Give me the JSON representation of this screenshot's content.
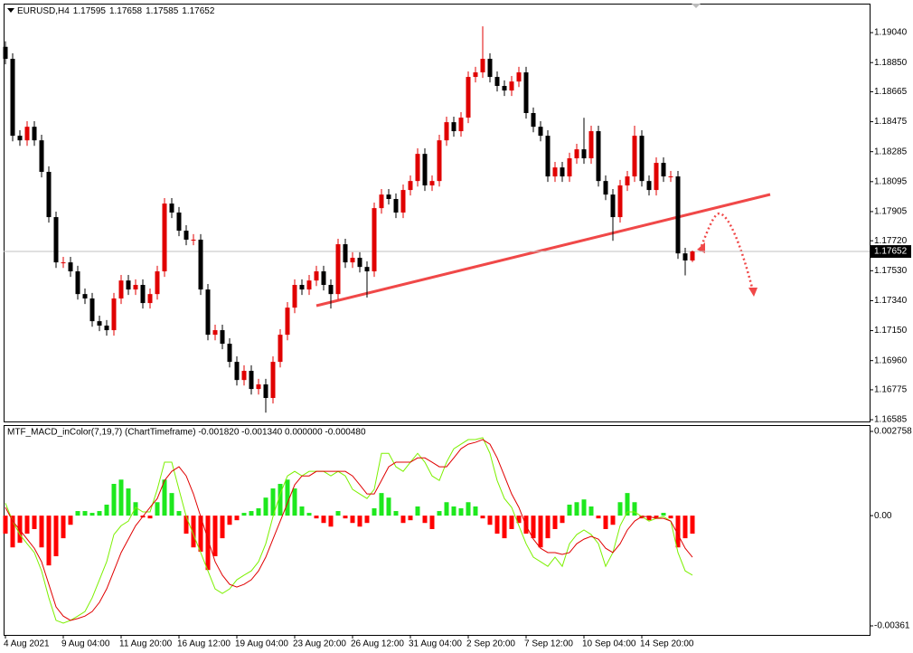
{
  "chart_data": [
    {
      "type": "candlestick",
      "title": "EURUSD,H4",
      "categories": [
        "4 Aug 2021",
        null,
        null,
        null,
        null,
        null,
        null,
        null,
        "9 Aug 04:00",
        null,
        null,
        null,
        null,
        null,
        null,
        null,
        "11 Aug 20:00",
        null,
        null,
        null,
        null,
        null,
        null,
        null,
        "16 Aug 12:00",
        null,
        null,
        null,
        null,
        null,
        null,
        null,
        "19 Aug 04:00",
        null,
        null,
        null,
        null,
        null,
        null,
        null,
        "23 Aug 20:00",
        null,
        null,
        null,
        null,
        null,
        null,
        null,
        "26 Aug 12:00",
        null,
        null,
        null,
        null,
        null,
        null,
        null,
        "31 Aug 04:00",
        null,
        null,
        null,
        null,
        null,
        null,
        null,
        "2 Sep 20:00",
        null,
        null,
        null,
        null,
        null,
        null,
        null,
        "7 Sep 12:00",
        null,
        null,
        null,
        null,
        null,
        null,
        null,
        "10 Sep 04:00",
        null,
        null,
        null,
        null,
        null,
        null,
        null,
        "14 Sep 20:00",
        null,
        null,
        null,
        null,
        null,
        null,
        null
      ],
      "open": [
        1.1895,
        1.18874,
        1.18386,
        1.18357,
        1.18443,
        1.18357,
        1.18157,
        1.1787,
        1.17583,
        1.17583,
        1.17526,
        1.17382,
        1.17354,
        1.1721,
        1.17182,
        1.17153,
        1.17354,
        1.17468,
        1.17411,
        1.1744,
        1.17325,
        1.17382,
        1.17526,
        1.17956,
        1.17899,
        1.17784,
        1.17727,
        1.17727,
        1.17411,
        1.17124,
        1.17153,
        1.17067,
        1.16952,
        1.16837,
        1.16895,
        1.1678,
        1.16809,
        1.16723,
        1.16952,
        1.17124,
        1.17296,
        1.1744,
        1.17411,
        1.17468,
        1.17526,
        1.1744,
        1.17382,
        1.17698,
        1.17583,
        1.17612,
        1.17554,
        1.17526,
        1.17927,
        1.18013,
        1.17985,
        1.17899,
        1.18042,
        1.18099,
        1.18271,
        1.18071,
        1.18099,
        1.18357,
        1.18472,
        1.18415,
        1.18501,
        1.18759,
        1.18788,
        1.18874,
        1.18759,
        1.18702,
        1.18673,
        1.1873,
        1.18788,
        1.1853,
        1.18443,
        1.18386,
        1.18128,
        1.18185,
        1.18128,
        1.18243,
        1.183,
        1.18243,
        1.18415,
        1.18099,
        1.18013,
        1.1787,
        1.18071,
        1.18128,
        1.18386,
        1.18099,
        1.18042,
        1.18214,
        1.18128,
        1.18128,
        1.1764,
        1.17595
      ],
      "high": [
        1.18985,
        1.18909,
        1.18421,
        1.18478,
        1.18478,
        1.18392,
        1.18192,
        1.17905,
        1.17618,
        1.17618,
        1.17561,
        1.17417,
        1.17389,
        1.17245,
        1.17217,
        1.17389,
        1.17503,
        1.17503,
        1.17475,
        1.17475,
        1.17417,
        1.17561,
        1.17991,
        1.17991,
        1.17934,
        1.17819,
        1.17762,
        1.17762,
        1.17446,
        1.17188,
        1.17188,
        1.17102,
        1.16987,
        1.1693,
        1.1693,
        1.16844,
        1.16844,
        1.16987,
        1.17159,
        1.17331,
        1.17475,
        1.17475,
        1.17503,
        1.17561,
        1.17561,
        1.17475,
        1.17733,
        1.17733,
        1.17647,
        1.17647,
        1.17589,
        1.17962,
        1.18048,
        1.18048,
        1.1802,
        1.18077,
        1.18134,
        1.18306,
        1.18306,
        1.18134,
        1.18392,
        1.18507,
        1.18507,
        1.18536,
        1.18794,
        1.18823,
        1.1908,
        1.18909,
        1.18794,
        1.18737,
        1.18765,
        1.18823,
        1.18823,
        1.18565,
        1.18478,
        1.18421,
        1.1822,
        1.1822,
        1.18278,
        1.18335,
        1.185,
        1.1845,
        1.1845,
        1.18134,
        1.18048,
        1.18106,
        1.18163,
        1.1845,
        1.18421,
        1.18134,
        1.18249,
        1.18249,
        1.18163,
        1.18163,
        1.17675,
        1.17658
      ],
      "low": [
        1.18839,
        1.18351,
        1.18322,
        1.18322,
        1.18322,
        1.18122,
        1.17835,
        1.17548,
        1.17548,
        1.17491,
        1.17347,
        1.17319,
        1.17175,
        1.17147,
        1.17118,
        1.17118,
        1.17319,
        1.17376,
        1.17376,
        1.1729,
        1.1729,
        1.17347,
        1.17491,
        1.17864,
        1.17749,
        1.17692,
        1.17692,
        1.17376,
        1.17089,
        1.17089,
        1.17032,
        1.16917,
        1.16802,
        1.16802,
        1.16745,
        1.16745,
        1.1663,
        1.16688,
        1.16917,
        1.17089,
        1.17261,
        1.17376,
        1.17376,
        1.17433,
        1.17405,
        1.1729,
        1.17347,
        1.17548,
        1.17548,
        1.17519,
        1.1736,
        1.17491,
        1.17892,
        1.1795,
        1.17864,
        1.17864,
        1.18007,
        1.18064,
        1.18036,
        1.18036,
        1.18064,
        1.18322,
        1.1838,
        1.1838,
        1.18466,
        1.18724,
        1.18753,
        1.18724,
        1.18667,
        1.18638,
        1.18638,
        1.18695,
        1.18495,
        1.18408,
        1.18351,
        1.18093,
        1.18093,
        1.18093,
        1.18093,
        1.18208,
        1.18208,
        1.18208,
        1.18064,
        1.17978,
        1.1772,
        1.17835,
        1.18036,
        1.18093,
        1.18064,
        1.18007,
        1.18007,
        1.18093,
        1.18093,
        1.17605,
        1.175,
        1.17585
      ],
      "close": [
        1.18874,
        1.18386,
        1.18357,
        1.18443,
        1.18357,
        1.18157,
        1.1787,
        1.17583,
        1.17583,
        1.17526,
        1.17382,
        1.17354,
        1.1721,
        1.17182,
        1.17153,
        1.17354,
        1.17468,
        1.17411,
        1.1744,
        1.17325,
        1.17382,
        1.17526,
        1.17956,
        1.17899,
        1.17784,
        1.17727,
        1.17727,
        1.17411,
        1.17124,
        1.17153,
        1.17067,
        1.16952,
        1.16837,
        1.16895,
        1.1678,
        1.16809,
        1.16723,
        1.16952,
        1.17124,
        1.17296,
        1.1744,
        1.17411,
        1.17468,
        1.17526,
        1.1744,
        1.17382,
        1.17698,
        1.17583,
        1.17612,
        1.17554,
        1.17526,
        1.17927,
        1.18013,
        1.17985,
        1.17899,
        1.18042,
        1.18099,
        1.18271,
        1.18071,
        1.18099,
        1.18357,
        1.18472,
        1.18415,
        1.18501,
        1.18759,
        1.18788,
        1.18874,
        1.18759,
        1.18702,
        1.18673,
        1.1873,
        1.18788,
        1.1853,
        1.18443,
        1.18386,
        1.18128,
        1.18185,
        1.18128,
        1.18243,
        1.183,
        1.18243,
        1.18415,
        1.18099,
        1.18013,
        1.1787,
        1.18071,
        1.18128,
        1.18386,
        1.18099,
        1.18042,
        1.18214,
        1.18128,
        1.18128,
        1.1764,
        1.17595,
        1.17652
      ],
      "up_color": "#e00000",
      "down_color": "#000000",
      "ylim": [
        1.16574,
        1.19224
      ],
      "yticks": [
        {
          "value": 1.1904,
          "label": "1.19040"
        },
        {
          "value": 1.1885,
          "label": "1.18850"
        },
        1.18665,
        1.18475,
        1.18285,
        1.18095,
        1.17905,
        {
          "value": 1.1772,
          "label": "1.17720"
        },
        {
          "value": 1.1753,
          "label": "1.17530"
        },
        {
          "value": 1.1734,
          "label": "1.17340"
        },
        {
          "value": 1.1715,
          "label": "1.17150"
        },
        {
          "value": 1.1696,
          "label": "1.16960"
        },
        1.16775,
        1.16585
      ],
      "grid": false
    },
    {
      "type": "macd",
      "title": "MTF_MACD_inColor(7,19,7) (ChartTimeframe) -0.001820 -0.001340 0.000000 -0.000480",
      "values": [
        -0.00059,
        -0.00104,
        -0.00089,
        -0.00059,
        -0.00044,
        -0.00104,
        -0.00163,
        -0.00133,
        -0.00074,
        -0.0003,
        0.00015,
        0.00015,
        9e-05,
        0.00015,
        0.00036,
        0.00104,
        0.00118,
        0.00089,
        0.00044,
        -6e-05,
        -9e-05,
        0.00044,
        0.00118,
        0.00074,
        0.00015,
        -0.00059,
        -0.00104,
        -0.00118,
        -0.00178,
        -0.00133,
        -0.00074,
        -0.0003,
        -0.00015,
        9e-05,
        0.00015,
        0.00024,
        0.00059,
        0.00089,
        0.00104,
        0.00118,
        0.00089,
        0.0003,
        9e-05,
        -9e-05,
        -0.00024,
        -0.00036,
        0.00015,
        -9e-05,
        -0.00024,
        -0.00036,
        -0.00024,
        0.00024,
        0.00074,
        0.00059,
        0.00015,
        -0.00024,
        -0.00015,
        0.0003,
        -0.00024,
        -0.00044,
        0.00015,
        0.00044,
        0.0003,
        0.00024,
        0.00044,
        0.0003,
        -9e-05,
        -0.0003,
        -0.00059,
        -0.00074,
        -0.00044,
        -0.00024,
        -0.00059,
        -0.00074,
        -0.00104,
        -0.00074,
        -0.00044,
        -0.00024,
        0.00036,
        0.00044,
        0.00053,
        0.0003,
        -9e-05,
        -0.00044,
        -0.0003,
        0.00044,
        0.00074,
        0.00044,
        -9e-05,
        -0.00015,
        -9e-05,
        9e-05,
        -9e-05,
        -0.00104,
        -0.00074,
        -0.00059
      ],
      "positive_color": "#1ee81e",
      "negative_color": "#ff0000",
      "series": [
        {
          "color": "#7cf000",
          "values": [
            0.00041,
            -0.00018,
            -0.00062,
            -0.00092,
            -0.00121,
            -0.00181,
            -0.00269,
            -0.00343,
            -0.00352,
            -0.00343,
            -0.00329,
            -0.00314,
            -0.00269,
            -0.0021,
            -0.00151,
            -0.00062,
            -0.00033,
            -0.00018,
            0.00027,
            0.00012,
            0.00012,
            0.00086,
            0.00175,
            0.00175,
            0.00086,
            -3e-05,
            -0.00062,
            -0.00121,
            -0.00181,
            -0.0024,
            -0.00255,
            -0.0024,
            -0.0021,
            -0.00195,
            -0.00181,
            -0.00151,
            -0.00092,
            -3e-05,
            0.00071,
            0.0013,
            0.00145,
            0.0013,
            0.00145,
            0.00145,
            0.00145,
            0.0013,
            0.00145,
            0.0013,
            0.00086,
            0.00071,
            0.00056,
            0.00086,
            0.00204,
            0.00204,
            0.0016,
            0.00145,
            0.00175,
            0.00204,
            0.00175,
            0.0013,
            0.00115,
            0.00175,
            0.00219,
            0.00234,
            0.00249,
            0.00249,
            0.00255,
            0.00204,
            0.00115,
            0.00056,
            0.00027,
            -0.00033,
            -0.00092,
            -0.00136,
            -0.00151,
            -0.00166,
            -0.00136,
            -0.00166,
            -0.00092,
            -0.00062,
            -0.00047,
            -0.00062,
            -0.00092,
            -0.00166,
            -0.00121,
            -0.00033,
            0.00012,
            0.00012,
            -3e-05,
            -0.00018,
            -9e-05,
            -3e-05,
            -0.00018,
            -0.00121,
            -0.00181,
            -0.00195
          ]
        },
        {
          "color": "#e00000",
          "values": [
            0.00027,
            -0.00018,
            -0.00047,
            -0.00077,
            -0.00107,
            -0.00151,
            -0.00225,
            -0.00299,
            -0.00329,
            -0.00343,
            -0.00337,
            -0.00329,
            -0.00314,
            -0.00284,
            -0.0024,
            -0.00181,
            -0.00121,
            -0.00077,
            -0.00033,
            -3e-05,
            0.00027,
            0.00056,
            0.00115,
            0.00145,
            0.0016,
            0.0013,
            0.00071,
            -3e-05,
            -0.00077,
            -0.00151,
            -0.00195,
            -0.00225,
            -0.00234,
            -0.00225,
            -0.0021,
            -0.00181,
            -0.00136,
            -0.00077,
            -0.00018,
            0.00041,
            0.00101,
            0.0013,
            0.0013,
            0.00145,
            0.00145,
            0.00145,
            0.00145,
            0.00145,
            0.0013,
            0.00101,
            0.00071,
            0.00071,
            0.00115,
            0.0016,
            0.00175,
            0.00175,
            0.00175,
            0.00189,
            0.00189,
            0.00175,
            0.0016,
            0.0016,
            0.00189,
            0.00219,
            0.00234,
            0.0024,
            0.00249,
            0.00234,
            0.00189,
            0.0013,
            0.00071,
            0.00027,
            -0.00033,
            -0.00077,
            -0.00107,
            -0.00121,
            -0.00121,
            -0.00127,
            -0.00121,
            -0.00092,
            -0.00077,
            -0.00068,
            -0.00077,
            -0.00107,
            -0.00121,
            -0.00092,
            -0.00047,
            -0.00018,
            -3e-05,
            -3e-05,
            -9e-05,
            -9e-05,
            -0.00018,
            -0.00062,
            -0.00107,
            -0.00136
          ]
        }
      ],
      "ylim": [
        -0.003906,
        0.002965
      ],
      "yticks": [
        0.002758,
        {
          "value": 0,
          "label": "0.00"
        },
        -0.00361
      ],
      "grid": false
    }
  ]
}
